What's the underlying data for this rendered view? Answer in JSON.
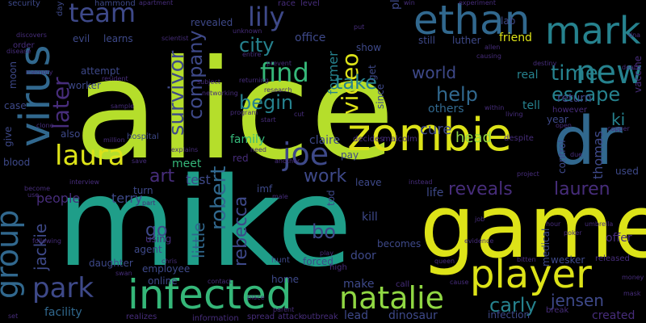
{
  "palette": {
    "background": "#000000",
    "lime": "#b5de2b",
    "yellowgreen": "#dde318",
    "green": "#6ece58",
    "lightgreen": "#90d743",
    "teal": "#1f9e89",
    "cyan": "#26828e",
    "blue": "#31688e",
    "indigo": "#3e4989",
    "violet": "#472d7b",
    "purple": "#440154",
    "mint": "#35b779"
  },
  "words": [
    {
      "text": "alice",
      "color": "lime"
    },
    {
      "text": "mike",
      "color": "teal"
    },
    {
      "text": "game",
      "color": "yellowgreen"
    },
    {
      "text": "zombie",
      "color": "yellowgreen"
    },
    {
      "text": "dr",
      "color": "blue"
    },
    {
      "text": "infected",
      "color": "mint"
    },
    {
      "text": "player",
      "color": "yellowgreen"
    },
    {
      "text": "virus",
      "color": "blue"
    },
    {
      "text": "ethan",
      "color": "blue"
    },
    {
      "text": "mark",
      "color": "cyan"
    },
    {
      "text": "new",
      "color": "cyan"
    },
    {
      "text": "team",
      "color": "indigo"
    },
    {
      "text": "group",
      "color": "blue"
    },
    {
      "text": "laura",
      "color": "yellowgreen"
    },
    {
      "text": "natalie",
      "color": "lightgreen"
    },
    {
      "text": "park",
      "color": "indigo"
    },
    {
      "text": "joe",
      "color": "indigo"
    },
    {
      "text": "lily",
      "color": "indigo"
    },
    {
      "text": "survivor",
      "color": "indigo"
    },
    {
      "text": "find",
      "color": "mint"
    },
    {
      "text": "later",
      "color": "violet"
    },
    {
      "text": "video",
      "color": "yellowgreen"
    },
    {
      "text": "escape",
      "color": "cyan"
    },
    {
      "text": "time",
      "color": "cyan"
    },
    {
      "text": "city",
      "color": "cyan"
    },
    {
      "text": "begin",
      "color": "cyan"
    },
    {
      "text": "company",
      "color": "indigo"
    },
    {
      "text": "robert",
      "color": "blue"
    },
    {
      "text": "take",
      "color": "cyan"
    },
    {
      "text": "help",
      "color": "blue"
    },
    {
      "text": "world",
      "color": "indigo"
    },
    {
      "text": "reveals",
      "color": "violet"
    },
    {
      "text": "lauren",
      "color": "violet"
    },
    {
      "text": "art",
      "color": "violet"
    },
    {
      "text": "work",
      "color": "indigo"
    },
    {
      "text": "jackie",
      "color": "indigo"
    },
    {
      "text": "rebecca",
      "color": "indigo"
    },
    {
      "text": "little",
      "color": "blue"
    },
    {
      "text": "go",
      "color": "indigo"
    },
    {
      "text": "bo",
      "color": "indigo"
    },
    {
      "text": "carly",
      "color": "cyan"
    },
    {
      "text": "jensen",
      "color": "indigo"
    },
    {
      "text": "ki",
      "color": "cyan"
    },
    {
      "text": "head",
      "color": "lightgreen"
    },
    {
      "text": "thomas",
      "color": "indigo"
    },
    {
      "text": "cure",
      "color": "indigo"
    },
    {
      "text": "test",
      "color": "indigo"
    },
    {
      "text": "people",
      "color": "violet"
    },
    {
      "text": "terry",
      "color": "indigo"
    },
    {
      "text": "meet",
      "color": "mint"
    },
    {
      "text": "family",
      "color": "mint"
    },
    {
      "text": "claire",
      "color": "indigo"
    },
    {
      "text": "life",
      "color": "indigo"
    },
    {
      "text": "tell",
      "color": "cyan"
    },
    {
      "text": "others",
      "color": "blue"
    },
    {
      "text": "real",
      "color": "cyan"
    },
    {
      "text": "former",
      "color": "cyan"
    },
    {
      "text": "office",
      "color": "indigo"
    },
    {
      "text": "friend",
      "color": "yellowgreen"
    },
    {
      "text": "return",
      "color": "indigo"
    },
    {
      "text": "kill",
      "color": "indigo"
    },
    {
      "text": "make",
      "color": "indigo"
    },
    {
      "text": "lead",
      "color": "indigo"
    },
    {
      "text": "dinosaur",
      "color": "indigo"
    },
    {
      "text": "infection",
      "color": "indigo"
    },
    {
      "text": "created",
      "color": "violet"
    },
    {
      "text": "becomes",
      "color": "indigo"
    },
    {
      "text": "door",
      "color": "indigo"
    },
    {
      "text": "facility",
      "color": "blue"
    },
    {
      "text": "agent",
      "color": "indigo"
    },
    {
      "text": "daughter",
      "color": "indigo"
    },
    {
      "text": "employee",
      "color": "indigo"
    },
    {
      "text": "using",
      "color": "violet"
    },
    {
      "text": "turn",
      "color": "indigo"
    },
    {
      "text": "home",
      "color": "indigo"
    },
    {
      "text": "online",
      "color": "indigo"
    },
    {
      "text": "attempt",
      "color": "indigo"
    },
    {
      "text": "worker",
      "color": "indigo"
    },
    {
      "text": "learns",
      "color": "indigo"
    },
    {
      "text": "evil",
      "color": "indigo"
    },
    {
      "text": "moon",
      "color": "indigo"
    },
    {
      "text": "case",
      "color": "indigo"
    },
    {
      "text": "give",
      "color": "indigo"
    },
    {
      "text": "blood",
      "color": "indigo"
    },
    {
      "text": "also",
      "color": "indigo"
    },
    {
      "text": "hospital",
      "color": "indigo"
    },
    {
      "text": "million",
      "color": "violet"
    },
    {
      "text": "security",
      "color": "indigo"
    },
    {
      "text": "day",
      "color": "indigo"
    },
    {
      "text": "hammond",
      "color": "indigo"
    },
    {
      "text": "apartment",
      "color": "violet"
    },
    {
      "text": "race",
      "color": "violet"
    },
    {
      "text": "level",
      "color": "violet"
    },
    {
      "text": "revealed",
      "color": "indigo"
    },
    {
      "text": "unknown",
      "color": "violet"
    },
    {
      "text": "plant",
      "color": "indigo"
    },
    {
      "text": "lab",
      "color": "indigo"
    },
    {
      "text": "still",
      "color": "indigo"
    },
    {
      "text": "luther",
      "color": "indigo"
    },
    {
      "text": "show",
      "color": "indigo"
    },
    {
      "text": "get",
      "color": "indigo"
    },
    {
      "text": "since",
      "color": "indigo"
    },
    {
      "text": "pay",
      "color": "indigo"
    },
    {
      "text": "imf",
      "color": "indigo"
    },
    {
      "text": "tod",
      "color": "indigo"
    },
    {
      "text": "leave",
      "color": "indigo"
    },
    {
      "text": "decides",
      "color": "violet"
    },
    {
      "text": "malcolm",
      "color": "violet"
    },
    {
      "text": "despite",
      "color": "violet"
    },
    {
      "text": "year",
      "color": "indigo"
    },
    {
      "text": "however",
      "color": "violet"
    },
    {
      "text": "open",
      "color": "violet"
    },
    {
      "text": "vaccine",
      "color": "violet"
    },
    {
      "text": "used",
      "color": "indigo"
    },
    {
      "text": "offer",
      "color": "violet"
    },
    {
      "text": "control",
      "color": "indigo"
    },
    {
      "text": "medical",
      "color": "indigo"
    },
    {
      "text": "wesker",
      "color": "indigo"
    },
    {
      "text": "released",
      "color": "violet"
    },
    {
      "text": "forced",
      "color": "indigo"
    },
    {
      "text": "hunt",
      "color": "indigo"
    },
    {
      "text": "high",
      "color": "violet"
    },
    {
      "text": "call",
      "color": "violet"
    },
    {
      "text": "spread",
      "color": "violet"
    },
    {
      "text": "attack",
      "color": "violet"
    },
    {
      "text": "outbreak",
      "color": "violet"
    },
    {
      "text": "information",
      "color": "violet"
    },
    {
      "text": "realizes",
      "color": "violet"
    },
    {
      "text": "swan",
      "color": "violet"
    },
    {
      "text": "chris",
      "color": "violet"
    },
    {
      "text": "sample",
      "color": "violet"
    },
    {
      "text": "clone",
      "color": "violet"
    },
    {
      "text": "memory",
      "color": "violet"
    },
    {
      "text": "disease",
      "color": "violet"
    },
    {
      "text": "order",
      "color": "violet"
    },
    {
      "text": "discovers",
      "color": "violet"
    },
    {
      "text": "scientist",
      "color": "violet"
    },
    {
      "text": "resident",
      "color": "violet"
    },
    {
      "text": "research",
      "color": "violet"
    },
    {
      "text": "start",
      "color": "violet"
    },
    {
      "text": "save",
      "color": "violet"
    },
    {
      "text": "explains",
      "color": "violet"
    },
    {
      "text": "interview",
      "color": "violet"
    },
    {
      "text": "become",
      "color": "violet"
    },
    {
      "text": "use",
      "color": "violet"
    },
    {
      "text": "following",
      "color": "violet"
    },
    {
      "text": "set",
      "color": "violet"
    },
    {
      "text": "red",
      "color": "violet"
    },
    {
      "text": "need",
      "color": "violet"
    },
    {
      "text": "male",
      "color": "violet"
    },
    {
      "text": "parent",
      "color": "violet"
    },
    {
      "text": "place",
      "color": "violet"
    },
    {
      "text": "contact",
      "color": "violet"
    },
    {
      "text": "play",
      "color": "violet"
    },
    {
      "text": "queen",
      "color": "violet"
    },
    {
      "text": "evidence",
      "color": "violet"
    },
    {
      "text": "bitten",
      "color": "violet"
    },
    {
      "text": "job",
      "color": "violet"
    },
    {
      "text": "cause",
      "color": "violet"
    },
    {
      "text": "break",
      "color": "violet"
    },
    {
      "text": "money",
      "color": "violet"
    },
    {
      "text": "mask",
      "color": "violet"
    },
    {
      "text": "copper",
      "color": "violet"
    },
    {
      "text": "death",
      "color": "violet"
    },
    {
      "text": "dna",
      "color": "violet"
    },
    {
      "text": "experiment",
      "color": "violet"
    },
    {
      "text": "win",
      "color": "violet"
    },
    {
      "text": "allen",
      "color": "violet"
    },
    {
      "text": "causing",
      "color": "violet"
    },
    {
      "text": "destiny",
      "color": "violet"
    },
    {
      "text": "living",
      "color": "violet"
    },
    {
      "text": "poker",
      "color": "violet"
    },
    {
      "text": "umbrella",
      "color": "violet"
    },
    {
      "text": "due",
      "color": "violet"
    },
    {
      "text": "instead",
      "color": "violet"
    },
    {
      "text": "prevent",
      "color": "violet"
    },
    {
      "text": "program",
      "color": "violet"
    },
    {
      "text": "cut",
      "color": "violet"
    },
    {
      "text": "put",
      "color": "violet"
    },
    {
      "text": "subject",
      "color": "violet"
    },
    {
      "text": "networking",
      "color": "violet"
    },
    {
      "text": "returning",
      "color": "violet"
    },
    {
      "text": "entire",
      "color": "violet"
    },
    {
      "text": "within",
      "color": "violet"
    },
    {
      "text": "project",
      "color": "violet"
    },
    {
      "text": "hour",
      "color": "violet"
    },
    {
      "text": "part",
      "color": "violet"
    },
    {
      "text": "another",
      "color": "violet"
    }
  ]
}
